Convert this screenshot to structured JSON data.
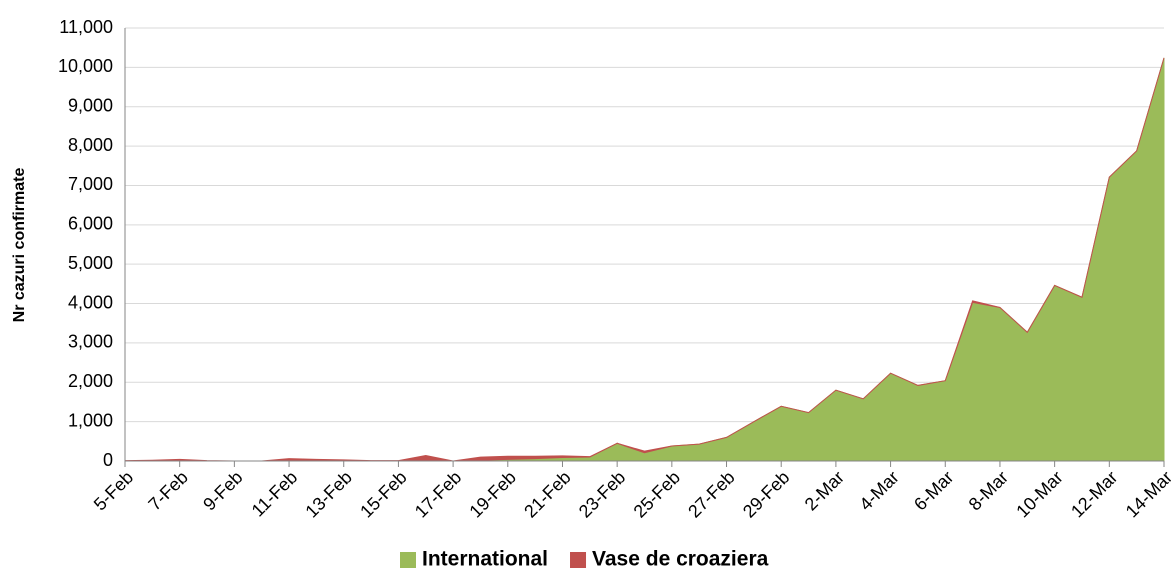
{
  "chart_data": {
    "type": "stacked_area",
    "y_label": "Nr cazuri confirmate",
    "categories": [
      "5-Feb",
      null,
      "7-Feb",
      null,
      "9-Feb",
      null,
      "11-Feb",
      null,
      "13-Feb",
      null,
      "15-Feb",
      null,
      "17-Feb",
      null,
      "19-Feb",
      null,
      "21-Feb",
      null,
      "23-Feb",
      null,
      "25-Feb",
      null,
      "27-Feb",
      null,
      "29-Feb",
      null,
      "2-Mar",
      null,
      "4-Mar",
      null,
      "6-Mar",
      null,
      "8-Mar",
      null,
      "10-Mar",
      null,
      "12-Mar",
      null,
      "14-Mar"
    ],
    "series": [
      {
        "name": "International",
        "color": "#9bbb59",
        "values": [
          0,
          10,
          0,
          0,
          0,
          0,
          0,
          0,
          0,
          0,
          0,
          0,
          0,
          20,
          40,
          60,
          90,
          100,
          450,
          210,
          380,
          430,
          600,
          1000,
          1390,
          1230,
          1800,
          1580,
          2230,
          1920,
          2040,
          4030,
          3900,
          3270,
          4460,
          4160,
          7210,
          7880,
          10240
        ]
      },
      {
        "name": "Vase de croaziera",
        "color": "#c0504d",
        "values": [
          10,
          10,
          40,
          10,
          0,
          0,
          60,
          40,
          30,
          10,
          10,
          140,
          0,
          80,
          80,
          60,
          40,
          10,
          0,
          40,
          0,
          0,
          0,
          0,
          0,
          0,
          0,
          0,
          0,
          0,
          0,
          40,
          0,
          0,
          0,
          0,
          0,
          0,
          0
        ]
      }
    ],
    "ylim": [
      0,
      11000
    ],
    "yticks": [
      0,
      {
        "value": 1000,
        "label": "1,000"
      },
      {
        "value": 2000,
        "label": "2,000"
      },
      {
        "value": 3000,
        "label": "3,000"
      },
      {
        "value": 4000,
        "label": "4,000"
      },
      {
        "value": 5000,
        "label": "5,000"
      },
      {
        "value": 6000,
        "label": "6,000"
      },
      {
        "value": 7000,
        "label": "7,000"
      },
      {
        "value": 8000,
        "label": "8,000"
      },
      {
        "value": 9000,
        "label": "9,000"
      },
      {
        "value": 10000,
        "label": "10,000"
      },
      {
        "value": 11000,
        "label": "11,000"
      }
    ],
    "grid": true,
    "legend": "bottom"
  }
}
